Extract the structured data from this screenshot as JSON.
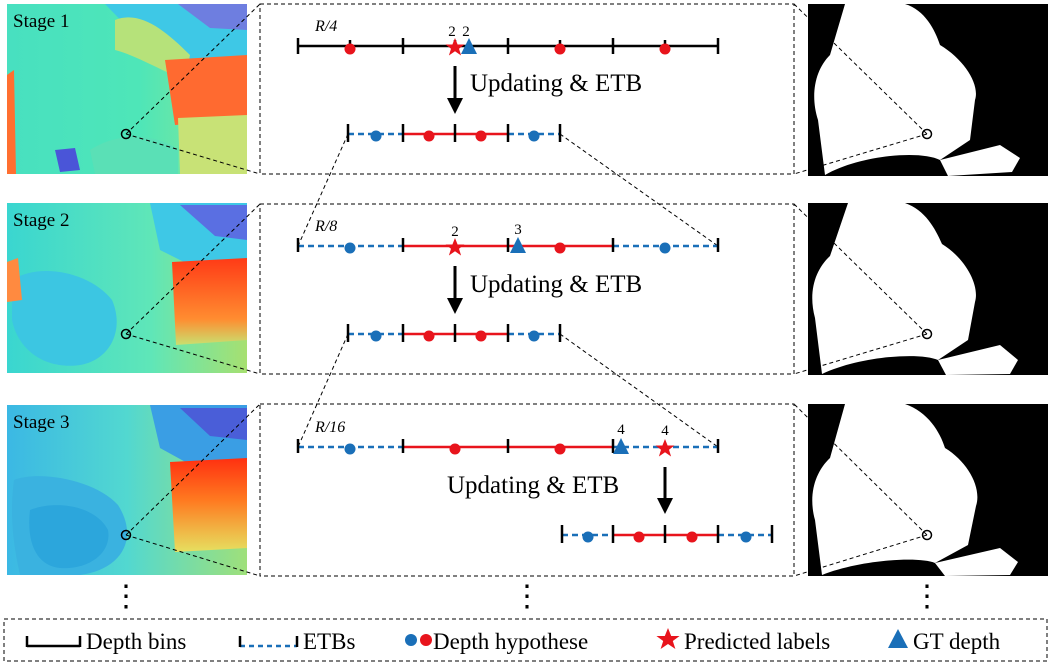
{
  "stages": [
    {
      "label": "Stage 1",
      "resolution_label": "R/4",
      "gt_text": "2",
      "pred_text": "2",
      "update_text": "Updating & ETB"
    },
    {
      "label": "Stage 2",
      "resolution_label": "R/8",
      "gt_text": "3",
      "pred_text": "2",
      "update_text": "Updating & ETB"
    },
    {
      "label": "Stage 3",
      "resolution_label": "R/16",
      "gt_text": "4",
      "pred_text": "4",
      "update_text": "Updating & ETB"
    }
  ],
  "continuation_glyph": "⋮",
  "legend": {
    "depth_bins": "Depth bins",
    "etbs": "ETBs",
    "depth_hypothese": "Depth hypothese",
    "predicted_labels": "Predicted labels",
    "gt_depth": "GT depth"
  },
  "colors": {
    "red": "#e8141c",
    "blue": "#1a6fb8",
    "black": "#000000"
  }
}
